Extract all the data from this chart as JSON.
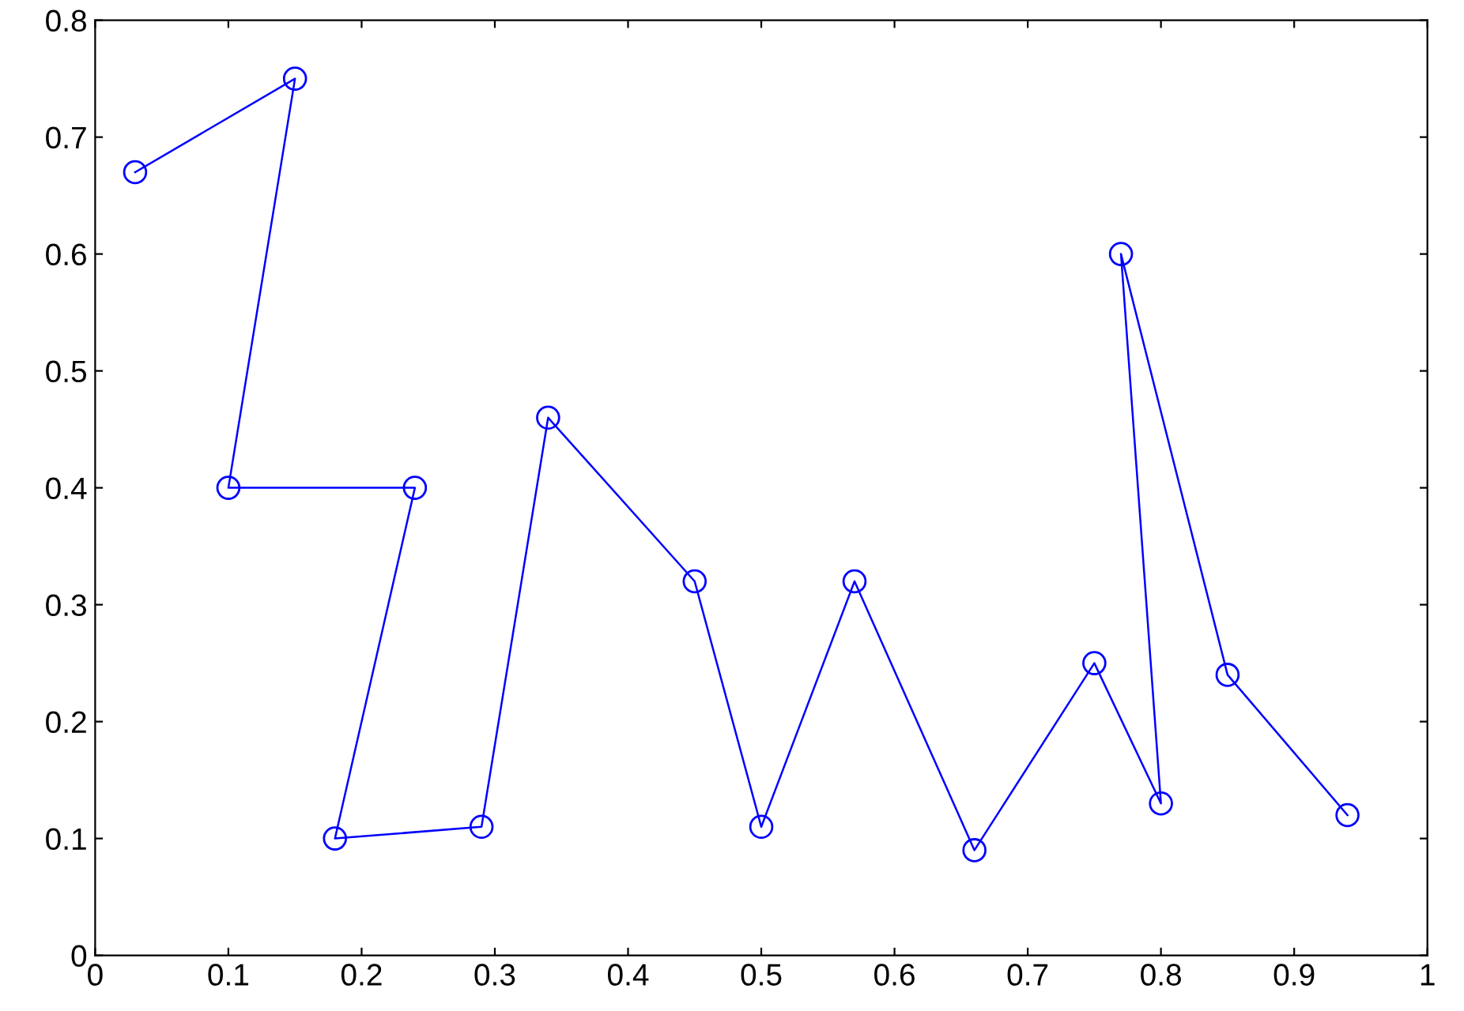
{
  "chart_data": {
    "type": "line",
    "marker": "circle",
    "line_style": "solid",
    "grid": false,
    "xlim": [
      0,
      1
    ],
    "ylim": [
      0,
      0.8
    ],
    "xticks": [
      0,
      0.1,
      0.2,
      0.3,
      0.4,
      0.5,
      0.6,
      0.7,
      0.8,
      0.9,
      1
    ],
    "yticks": [
      0,
      0.1,
      0.2,
      0.3,
      0.4,
      0.5,
      0.6,
      0.7,
      0.8
    ],
    "series": [
      {
        "color": "#0000ff",
        "x": [
          0.03,
          0.15,
          0.1,
          0.24,
          0.18,
          0.29,
          0.34,
          0.45,
          0.5,
          0.57,
          0.66,
          0.75,
          0.8,
          0.77,
          0.85,
          0.94
        ],
        "values": [
          0.67,
          0.75,
          0.4,
          0.4,
          0.1,
          0.11,
          0.46,
          0.32,
          0.11,
          0.32,
          0.09,
          0.25,
          0.13,
          0.6,
          0.24,
          0.12
        ]
      }
    ]
  }
}
